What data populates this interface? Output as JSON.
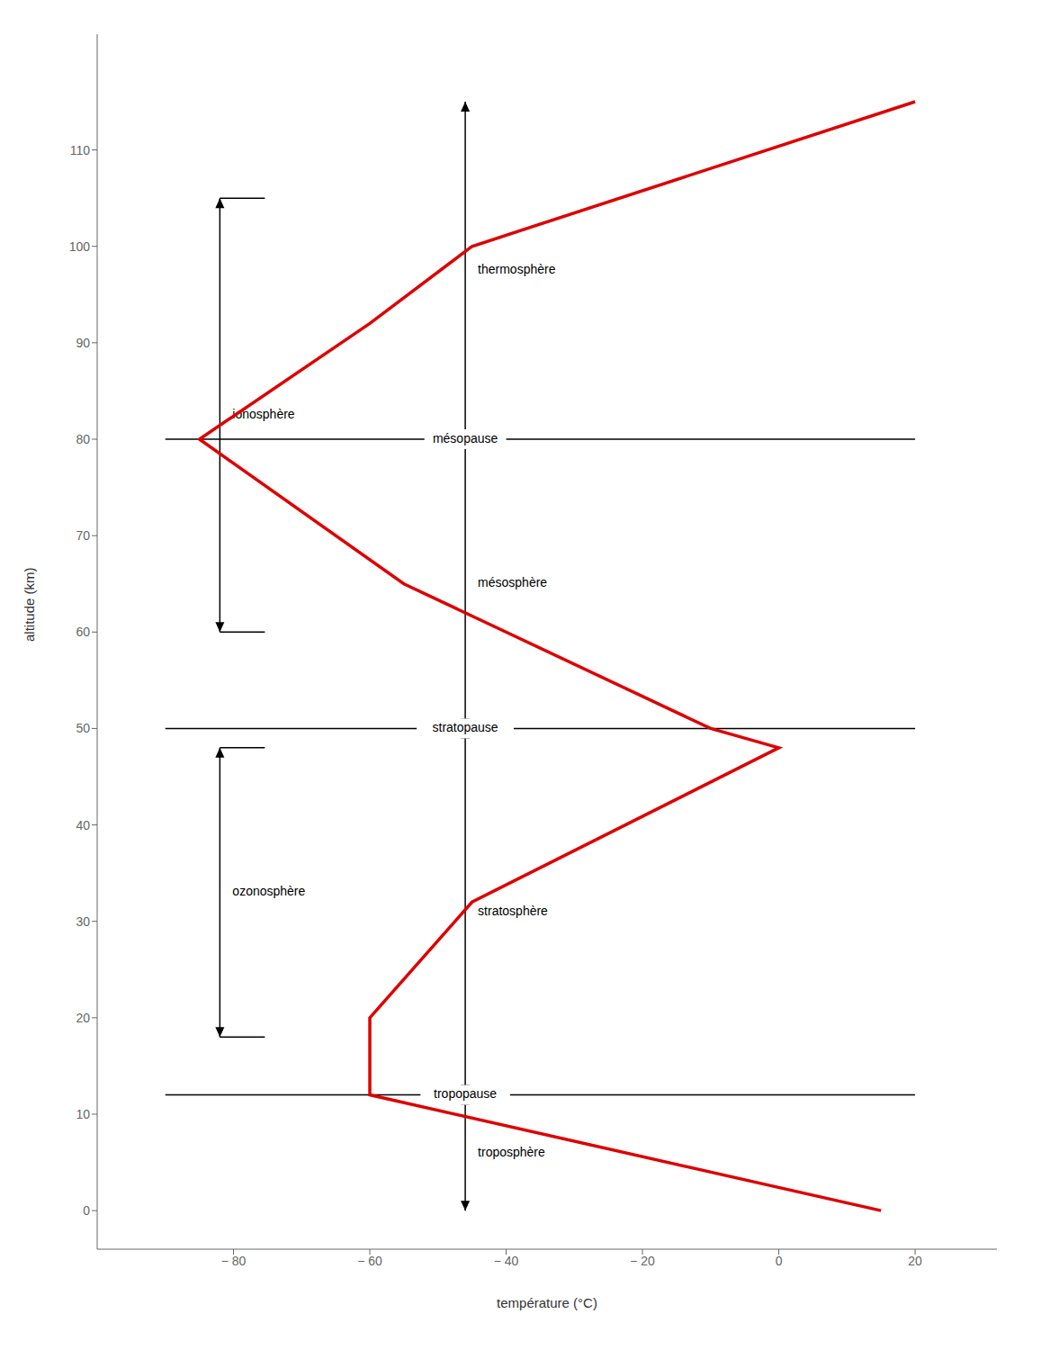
{
  "chart_data": {
    "type": "line",
    "x_label": "température (°C)",
    "y_label": "altitude (km)",
    "x": [
      15,
      -60,
      -60,
      -45,
      0,
      -10,
      -55,
      -85,
      -60,
      -45,
      20
    ],
    "values": [
      0,
      12,
      20,
      32,
      48,
      50,
      65,
      80,
      92,
      100,
      115
    ],
    "color": "#dd0000",
    "xlim": [
      -100,
      32
    ],
    "ylim": [
      -4,
      122
    ],
    "xticks": [
      {
        "value": -80,
        "label": "− 80"
      },
      {
        "value": -60,
        "label": "− 60"
      },
      {
        "value": -40,
        "label": "− 40"
      },
      {
        "value": -20,
        "label": "− 20"
      },
      0,
      20
    ],
    "yticks": [
      0,
      10,
      20,
      30,
      40,
      50,
      60,
      70,
      80,
      90,
      100,
      110
    ],
    "grid": false,
    "annotations": [
      {
        "type": "layer",
        "text": "troposphère",
        "x": -46,
        "y_range": [
          0,
          12
        ]
      },
      {
        "type": "layer",
        "text": "stratosphère",
        "x": -46,
        "y_range": [
          12,
          50
        ]
      },
      {
        "type": "layer",
        "text": "mésosphère",
        "x": -46,
        "y_range": [
          50,
          80
        ]
      },
      {
        "type": "layer",
        "text": "thermosphère",
        "x": -46,
        "y_range": [
          80,
          115
        ]
      },
      {
        "type": "bracket",
        "text": "ionosphère",
        "x": -82,
        "y_range": [
          60,
          105
        ]
      },
      {
        "type": "bracket",
        "text": "ozonosphère",
        "x": -82,
        "y_range": [
          18,
          48
        ]
      },
      {
        "type": "boundary",
        "text": "tropopause",
        "y": 12,
        "x": -46,
        "x_range": [
          -90,
          20
        ]
      },
      {
        "type": "boundary",
        "text": "stratopause",
        "y": 50,
        "x": -46,
        "x_range": [
          -90,
          20
        ]
      },
      {
        "type": "boundary",
        "text": "mésopause",
        "y": 80,
        "x": -46,
        "x_range": [
          -90,
          20
        ]
      }
    ]
  }
}
